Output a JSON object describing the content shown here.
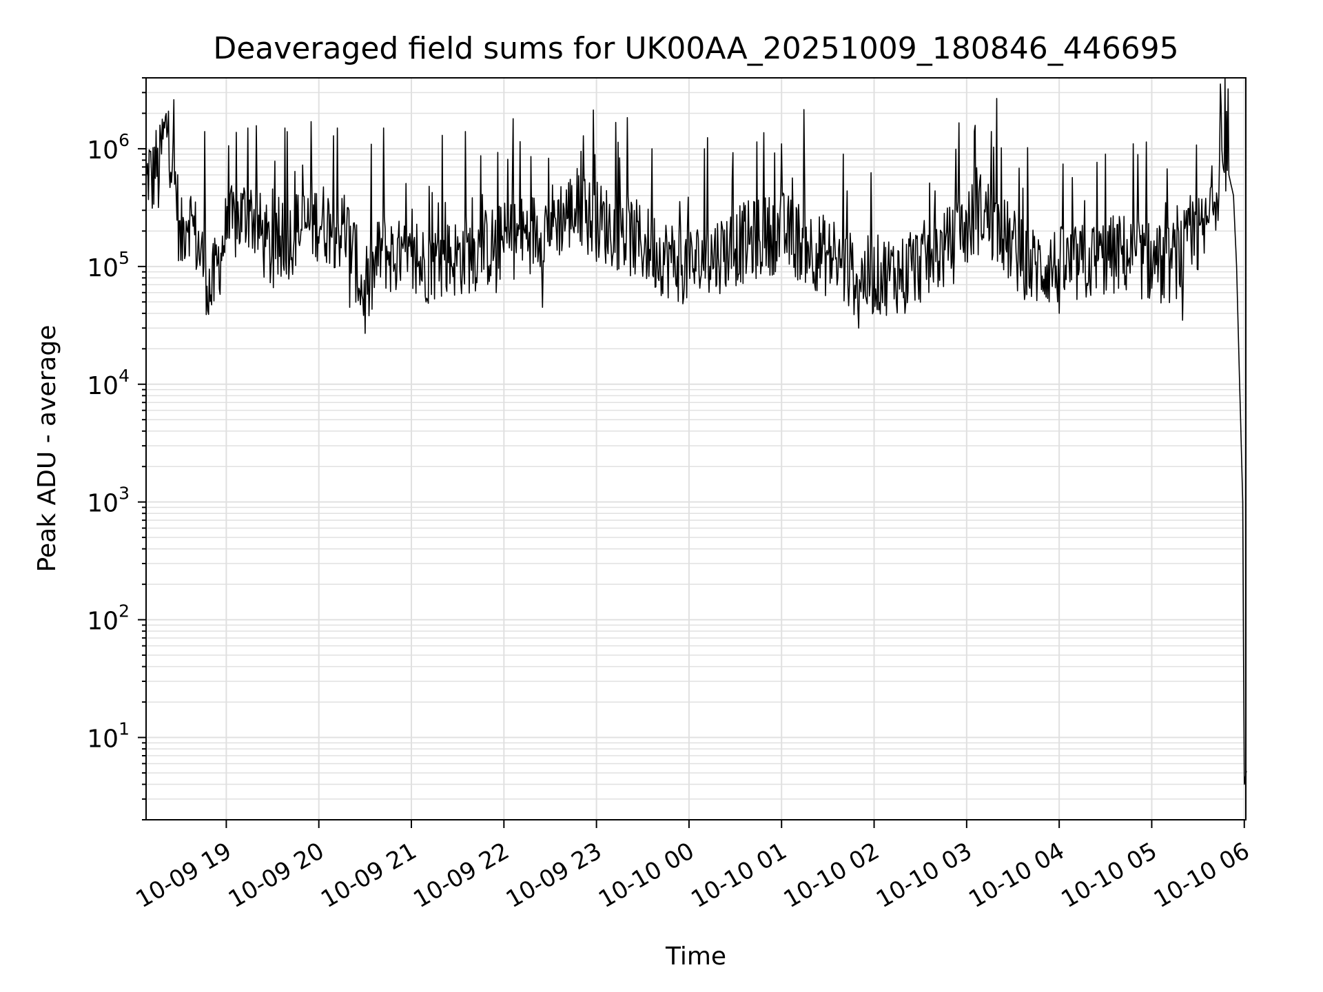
{
  "chart_data": {
    "type": "line",
    "title": "Deaveraged field sums for UK00AA_20251009_180846_446695",
    "xlabel": "Time",
    "ylabel": "Peak ADU - average",
    "yscale": "log",
    "ylim": [
      2,
      4000000
    ],
    "xlim": [
      "2025-10-09 18:08",
      "2025-10-10 06:01"
    ],
    "grid": true,
    "line_color": "#000000",
    "grid_color": "#e0e0e0",
    "x_ticks": [
      {
        "value": "2025-10-09 19:00",
        "label": "10-09 19"
      },
      {
        "value": "2025-10-09 20:00",
        "label": "10-09 20"
      },
      {
        "value": "2025-10-09 21:00",
        "label": "10-09 21"
      },
      {
        "value": "2025-10-09 22:00",
        "label": "10-09 22"
      },
      {
        "value": "2025-10-09 23:00",
        "label": "10-09 23"
      },
      {
        "value": "2025-10-10 00:00",
        "label": "10-10 00"
      },
      {
        "value": "2025-10-10 01:00",
        "label": "10-10 01"
      },
      {
        "value": "2025-10-10 02:00",
        "label": "10-10 02"
      },
      {
        "value": "2025-10-10 03:00",
        "label": "10-10 03"
      },
      {
        "value": "2025-10-10 04:00",
        "label": "10-10 04"
      },
      {
        "value": "2025-10-10 05:00",
        "label": "10-10 05"
      },
      {
        "value": "2025-10-10 06:00",
        "label": "10-10 06"
      }
    ],
    "y_ticks": [
      {
        "value": 10,
        "base": "10",
        "exp": "1"
      },
      {
        "value": 100,
        "base": "10",
        "exp": "2"
      },
      {
        "value": 1000,
        "base": "10",
        "exp": "3"
      },
      {
        "value": 10000,
        "base": "10",
        "exp": "4"
      },
      {
        "value": 100000,
        "base": "10",
        "exp": "5"
      },
      {
        "value": 1000000,
        "base": "10",
        "exp": "6"
      }
    ],
    "series": [
      {
        "points": [
          [
            "2025-10-09 18:08",
            450000
          ],
          [
            "2025-10-09 18:10",
            700000
          ],
          [
            "2025-10-09 18:12",
            500000
          ],
          [
            "2025-10-09 18:14",
            800000
          ],
          [
            "2025-10-09 18:16",
            550000
          ],
          [
            "2025-10-09 18:18",
            1000000
          ],
          [
            "2025-10-09 18:20",
            1300000
          ],
          [
            "2025-10-09 18:22",
            1600000
          ],
          [
            "2025-10-09 18:24",
            900000
          ],
          [
            "2025-10-09 18:26",
            600000
          ],
          [
            "2025-10-09 18:28",
            400000
          ],
          [
            "2025-10-09 18:30",
            150000
          ],
          [
            "2025-10-09 18:35",
            300000
          ],
          [
            "2025-10-09 18:40",
            180000
          ],
          [
            "2025-10-09 18:45",
            110000
          ],
          [
            "2025-10-09 18:50",
            60000
          ],
          [
            "2025-10-09 19:00",
            200000
          ],
          [
            "2025-10-09 19:15",
            300000
          ],
          [
            "2025-10-09 19:30",
            120000
          ],
          [
            "2025-10-09 19:45",
            200000
          ],
          [
            "2025-10-09 20:00",
            250000
          ],
          [
            "2025-10-09 20:20",
            180000
          ],
          [
            "2025-10-09 20:30",
            50000
          ],
          [
            "2025-10-09 20:40",
            140000
          ],
          [
            "2025-10-09 21:00",
            100000
          ],
          [
            "2025-10-09 21:30",
            120000
          ],
          [
            "2025-10-09 22:00",
            160000
          ],
          [
            "2025-10-09 22:20",
            200000
          ],
          [
            "2025-10-09 22:45",
            300000
          ],
          [
            "2025-10-09 23:15",
            200000
          ],
          [
            "2025-10-09 23:45",
            120000
          ],
          [
            "2025-10-10 00:00",
            100000
          ],
          [
            "2025-10-10 00:30",
            150000
          ],
          [
            "2025-10-10 01:00",
            200000
          ],
          [
            "2025-10-10 01:30",
            120000
          ],
          [
            "2025-10-10 01:50",
            80000
          ],
          [
            "2025-10-10 02:20",
            90000
          ],
          [
            "2025-10-10 02:50",
            150000
          ],
          [
            "2025-10-10 03:10",
            300000
          ],
          [
            "2025-10-10 03:40",
            100000
          ],
          [
            "2025-10-10 04:10",
            100000
          ],
          [
            "2025-10-10 04:40",
            130000
          ],
          [
            "2025-10-10 05:10",
            100000
          ],
          [
            "2025-10-10 05:35",
            200000
          ],
          [
            "2025-10-10 05:45",
            700000
          ],
          [
            "2025-10-10 05:50",
            600000
          ],
          [
            "2025-10-10 05:53",
            400000
          ],
          [
            "2025-10-10 05:55",
            100000
          ],
          [
            "2025-10-10 05:57",
            10000
          ],
          [
            "2025-10-10 05:59",
            1000
          ],
          [
            "2025-10-10 06:00",
            4
          ]
        ],
        "spikes": [
          [
            "2025-10-09 18:46",
            1400000
          ],
          [
            "2025-10-09 19:14",
            1500000
          ],
          [
            "2025-10-09 19:38",
            1500000
          ],
          [
            "2025-10-09 19:55",
            1700000
          ],
          [
            "2025-10-09 20:12",
            1500000
          ],
          [
            "2025-10-09 20:42",
            1500000
          ],
          [
            "2025-10-09 21:20",
            1300000
          ],
          [
            "2025-10-09 21:35",
            1400000
          ],
          [
            "2025-10-09 22:06",
            1800000
          ],
          [
            "2025-10-09 22:50",
            950000
          ],
          [
            "2025-10-09 23:36",
            1000000
          ],
          [
            "2025-10-10 00:10",
            1000000
          ],
          [
            "2025-10-10 01:00",
            1100000
          ],
          [
            "2025-10-10 01:40",
            900000
          ],
          [
            "2025-10-10 03:05",
            1400000
          ],
          [
            "2025-10-10 03:16",
            1400000
          ],
          [
            "2025-10-10 04:30",
            900000
          ],
          [
            "2025-10-10 05:20",
            900000
          ],
          [
            "2025-10-10 05:45",
            2300000
          ],
          [
            "2025-10-09 21:55",
            60000
          ],
          [
            "2025-10-09 22:25",
            45000
          ],
          [
            "2025-10-10 01:50",
            30000
          ],
          [
            "2025-10-10 02:20",
            40000
          ],
          [
            "2025-10-10 04:00",
            40000
          ],
          [
            "2025-10-10 05:20",
            35000
          ],
          [
            "2025-10-09 20:20",
            45000
          ]
        ]
      }
    ]
  }
}
